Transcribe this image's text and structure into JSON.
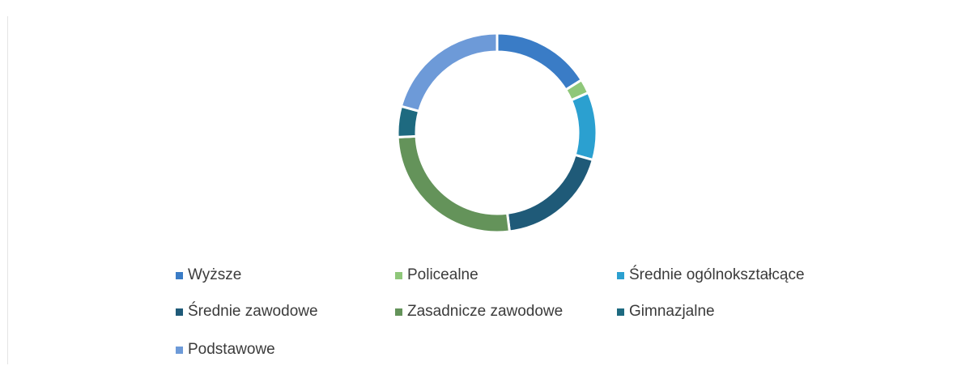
{
  "chart_data": {
    "type": "doughnut",
    "title": "",
    "legend_position": "bottom",
    "categories": [
      "Wyższe",
      "Policealne",
      "Średnie ogólnokształcące",
      "Średnie zawodowe",
      "Zasadnicze zawodowe",
      "Gimnazjalne",
      "Podstawowe"
    ],
    "values": [
      16.1,
      2.3,
      11.0,
      18.6,
      26.3,
      5.0,
      20.7
    ],
    "colors": [
      "#3a7cc6",
      "#8fc77a",
      "#2ba0d0",
      "#1f5a78",
      "#64935a",
      "#1e6a80",
      "#6d9ad8"
    ]
  }
}
